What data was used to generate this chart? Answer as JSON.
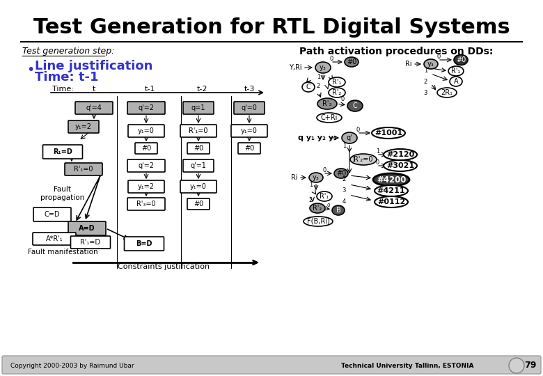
{
  "title": "Test Generation for RTL Digital Systems",
  "subtitle_label": "Test generation step:",
  "bullet_text": "Line justification\nTime: t-1",
  "path_activation_title": "Path activation procedures on DDs:",
  "background_color": "#f0f0f0",
  "slide_bg": "#ffffff",
  "title_color": "#000000",
  "bullet_color": "#3333cc",
  "footer_left": "Copyright 2000-2003 by Raimund Ubar",
  "footer_right": "Technical University Tallinn, ESTONIA",
  "page_number": "79",
  "constraints_label": "Constraints justification",
  "fault_propagation": "Fault\npropagation",
  "fault_manifestation": "Fault manifestation"
}
